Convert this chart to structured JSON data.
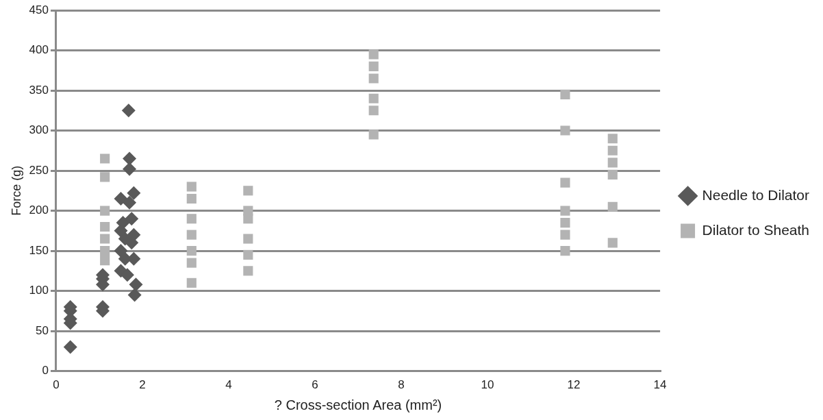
{
  "chart_data": {
    "type": "scatter",
    "xlabel": "? Cross-section Area (mm²)",
    "ylabel": "Force (g)",
    "xlim": [
      0,
      14
    ],
    "xticks": [
      0,
      2,
      4,
      6,
      8,
      10,
      12,
      14
    ],
    "ylim": [
      0,
      450
    ],
    "yticks": [
      0,
      50,
      100,
      150,
      200,
      250,
      300,
      350,
      400,
      450
    ],
    "grid": "y",
    "legend": "right",
    "series": [
      {
        "name": "Needle to Dilator",
        "color": "#595959",
        "marker": "diamond",
        "x": [
          0.33,
          0.33,
          0.33,
          0.33,
          0.33,
          1.08,
          1.08,
          1.08,
          1.08,
          1.08,
          1.5,
          1.5,
          1.5,
          1.5,
          1.55,
          1.6,
          1.6,
          1.65,
          1.68,
          1.7,
          1.7,
          1.7,
          1.75,
          1.75,
          1.8,
          1.8,
          1.8,
          1.82,
          1.85
        ],
        "values": [
          30,
          60,
          65,
          75,
          80,
          75,
          80,
          108,
          115,
          120,
          215,
          175,
          150,
          125,
          185,
          165,
          140,
          120,
          325,
          265,
          252,
          210,
          190,
          160,
          222,
          170,
          140,
          95,
          108
        ]
      },
      {
        "name": "Dilator to Sheath",
        "color": "#b3b3b3",
        "marker": "square",
        "x": [
          1.13,
          1.13,
          1.13,
          1.13,
          1.13,
          1.13,
          1.13,
          3.14,
          3.14,
          3.14,
          3.14,
          3.14,
          3.14,
          3.14,
          4.45,
          4.45,
          4.45,
          4.45,
          4.45,
          4.45,
          7.36,
          7.36,
          7.36,
          7.36,
          7.36,
          7.36,
          11.8,
          11.8,
          11.8,
          11.8,
          11.8,
          11.8,
          11.8,
          12.9,
          12.9,
          12.9,
          12.9,
          12.9,
          12.9
        ],
        "values": [
          265,
          242,
          200,
          180,
          165,
          150,
          138,
          230,
          215,
          190,
          170,
          150,
          135,
          110,
          225,
          200,
          190,
          165,
          145,
          125,
          395,
          380,
          365,
          340,
          325,
          295,
          345,
          300,
          235,
          200,
          185,
          170,
          150,
          290,
          275,
          260,
          245,
          205,
          160
        ]
      }
    ]
  }
}
